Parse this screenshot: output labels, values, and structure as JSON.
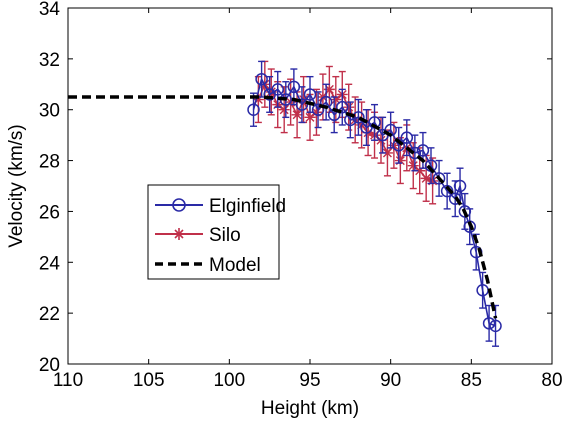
{
  "chart_data": {
    "type": "scatter",
    "xlabel": "Height (km)",
    "ylabel": "Velocity (km/s)",
    "xlim": [
      110,
      80
    ],
    "ylim": [
      20,
      34
    ],
    "x_reversed": true,
    "xticks": [
      110,
      105,
      100,
      95,
      90,
      85,
      80
    ],
    "yticks": [
      20,
      22,
      24,
      26,
      28,
      30,
      32,
      34
    ],
    "grid": false,
    "legend_position": "middle-left",
    "series": [
      {
        "name": "Elginfield",
        "color": "#2a2aa6",
        "marker": "circle",
        "x": [
          98.5,
          98.0,
          97.5,
          97.0,
          96.5,
          96.0,
          95.5,
          95.0,
          94.5,
          94.0,
          93.5,
          93.0,
          92.5,
          92.0,
          91.5,
          91.0,
          90.5,
          90.0,
          89.5,
          89.0,
          88.5,
          88.0,
          87.5,
          87.0,
          86.5,
          86.0,
          85.7,
          85.4,
          85.1,
          84.7,
          84.3,
          83.9,
          83.5
        ],
        "y": [
          30.0,
          31.2,
          30.6,
          30.8,
          30.4,
          30.9,
          30.2,
          30.6,
          30.0,
          30.3,
          29.8,
          30.1,
          29.6,
          29.7,
          29.3,
          29.5,
          29.0,
          29.2,
          28.6,
          28.9,
          28.3,
          28.4,
          27.8,
          27.3,
          26.8,
          26.5,
          27.0,
          26.0,
          25.4,
          24.4,
          22.9,
          21.6,
          21.5
        ],
        "err": [
          0.65,
          0.7,
          0.7,
          0.7,
          0.7,
          0.7,
          0.7,
          0.7,
          0.7,
          0.7,
          0.7,
          0.7,
          0.7,
          0.7,
          0.7,
          0.7,
          0.7,
          0.7,
          0.7,
          0.7,
          0.7,
          0.7,
          0.7,
          0.7,
          0.7,
          0.7,
          0.7,
          0.7,
          0.7,
          0.7,
          0.7,
          0.7,
          0.8
        ]
      },
      {
        "name": "Silo",
        "color": "#c0304a",
        "marker": "star",
        "x": [
          98.2,
          97.8,
          97.4,
          97.0,
          96.6,
          96.2,
          95.8,
          95.4,
          95.0,
          94.6,
          94.2,
          93.8,
          93.4,
          93.0,
          92.6,
          92.2,
          91.8,
          91.4,
          91.0,
          90.6,
          90.2,
          89.8,
          89.4,
          89.0,
          88.6,
          88.2,
          87.8,
          87.4
        ],
        "y": [
          30.4,
          31.0,
          30.7,
          30.2,
          30.0,
          30.3,
          29.8,
          30.4,
          29.7,
          29.9,
          30.5,
          30.8,
          30.4,
          30.6,
          30.1,
          29.6,
          29.4,
          29.1,
          29.0,
          28.8,
          28.3,
          28.6,
          28.0,
          28.5,
          27.8,
          27.6,
          27.3,
          27.2
        ],
        "err": [
          0.9,
          0.9,
          0.9,
          0.9,
          0.9,
          0.9,
          0.9,
          0.9,
          0.9,
          0.9,
          0.9,
          0.9,
          0.9,
          0.9,
          0.9,
          0.9,
          0.9,
          0.9,
          0.9,
          0.9,
          0.9,
          0.9,
          0.9,
          0.9,
          0.9,
          0.9,
          0.9,
          0.9
        ]
      },
      {
        "name": "Model",
        "color": "#000000",
        "style": "dashed",
        "x": [
          110,
          100,
          98,
          96,
          94,
          92,
          90,
          88,
          87,
          86,
          85.5,
          85,
          84.5,
          84,
          83.5
        ],
        "y": [
          30.5,
          30.5,
          30.5,
          30.4,
          30.1,
          29.7,
          29.0,
          28.0,
          27.3,
          26.6,
          26.1,
          25.4,
          24.5,
          23.3,
          21.8
        ]
      }
    ]
  }
}
